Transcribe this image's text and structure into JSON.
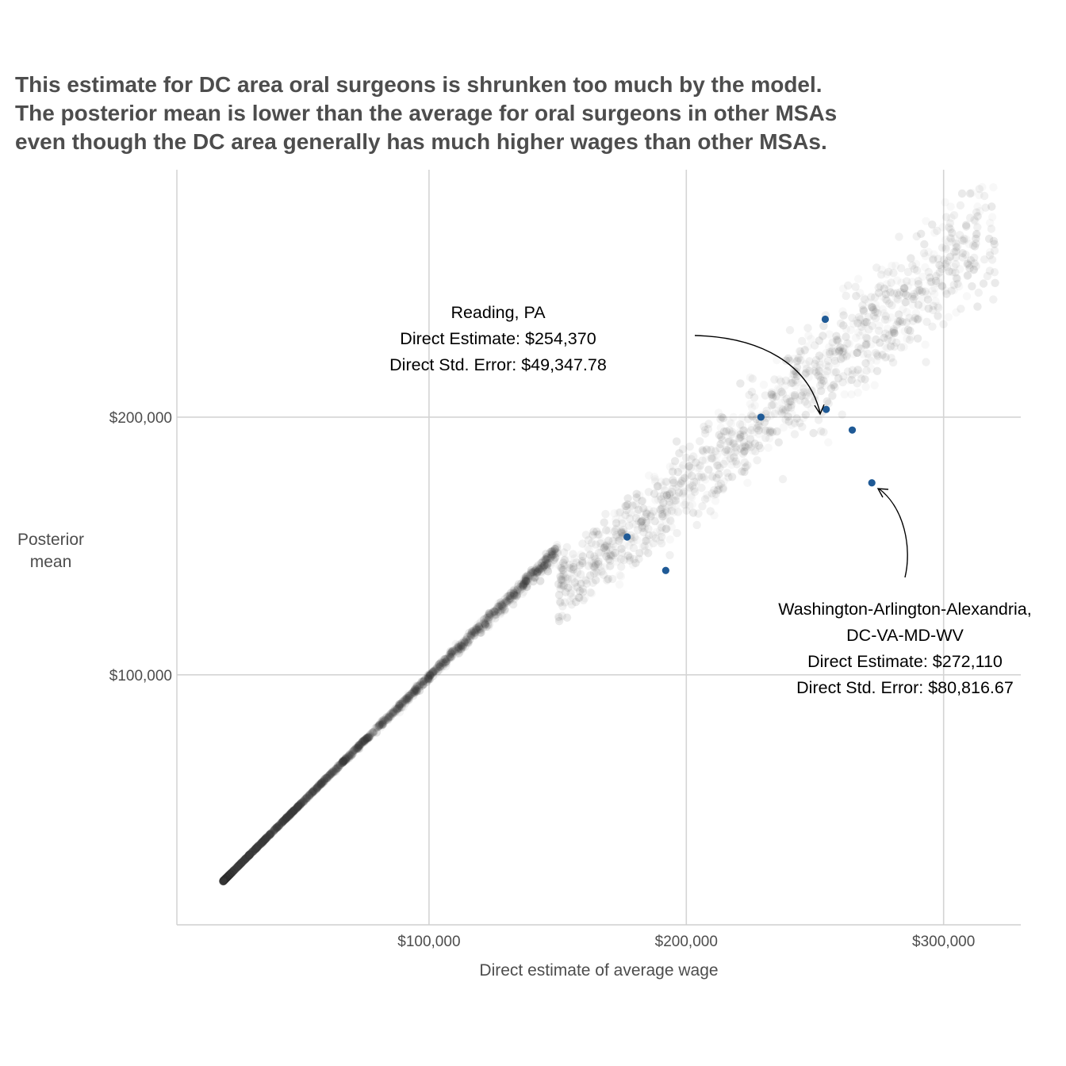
{
  "chart_data": {
    "type": "scatter",
    "title_lines": [
      "This estimate for DC area oral surgeons is shrunken too much by the model.",
      "The posterior mean is lower than the average for oral surgeons in other MSAs",
      "even though the DC area generally has much higher wages than other MSAs."
    ],
    "xlabel": "Direct estimate of average wage",
    "ylabel_lines": [
      "Posterior",
      "mean"
    ],
    "xlim": [
      2000,
      330000
    ],
    "ylim": [
      3000,
      296000
    ],
    "x_ticks": [
      100000,
      200000,
      300000
    ],
    "x_tick_labels": [
      "$100,000",
      "$200,000",
      "$300,000"
    ],
    "y_ticks": [
      100000,
      200000
    ],
    "y_tick_labels": [
      "$100,000",
      "$200,000"
    ],
    "grid": true,
    "background_points": {
      "description_color": "#333333",
      "x_range": [
        20000,
        320000
      ]
    },
    "highlighted_points": [
      {
        "x": 254000,
        "y": 238000
      },
      {
        "x": 229000,
        "y": 200000
      },
      {
        "x": 254370,
        "y": 203000
      },
      {
        "x": 264500,
        "y": 195000
      },
      {
        "x": 272110,
        "y": 174500
      },
      {
        "x": 177000,
        "y": 153500
      },
      {
        "x": 192000,
        "y": 140500
      }
    ],
    "highlight_color": "#1f5a96",
    "annotations": [
      {
        "lines": [
          "Reading, PA",
          "Direct Estimate: $254,370",
          "Direct Std. Error: $49,347.78"
        ]
      },
      {
        "lines": [
          "Washington-Arlington-Alexandria,",
          "DC-VA-MD-WV",
          "Direct Estimate: $272,110",
          "Direct Std. Error: $80,816.67"
        ]
      }
    ]
  }
}
